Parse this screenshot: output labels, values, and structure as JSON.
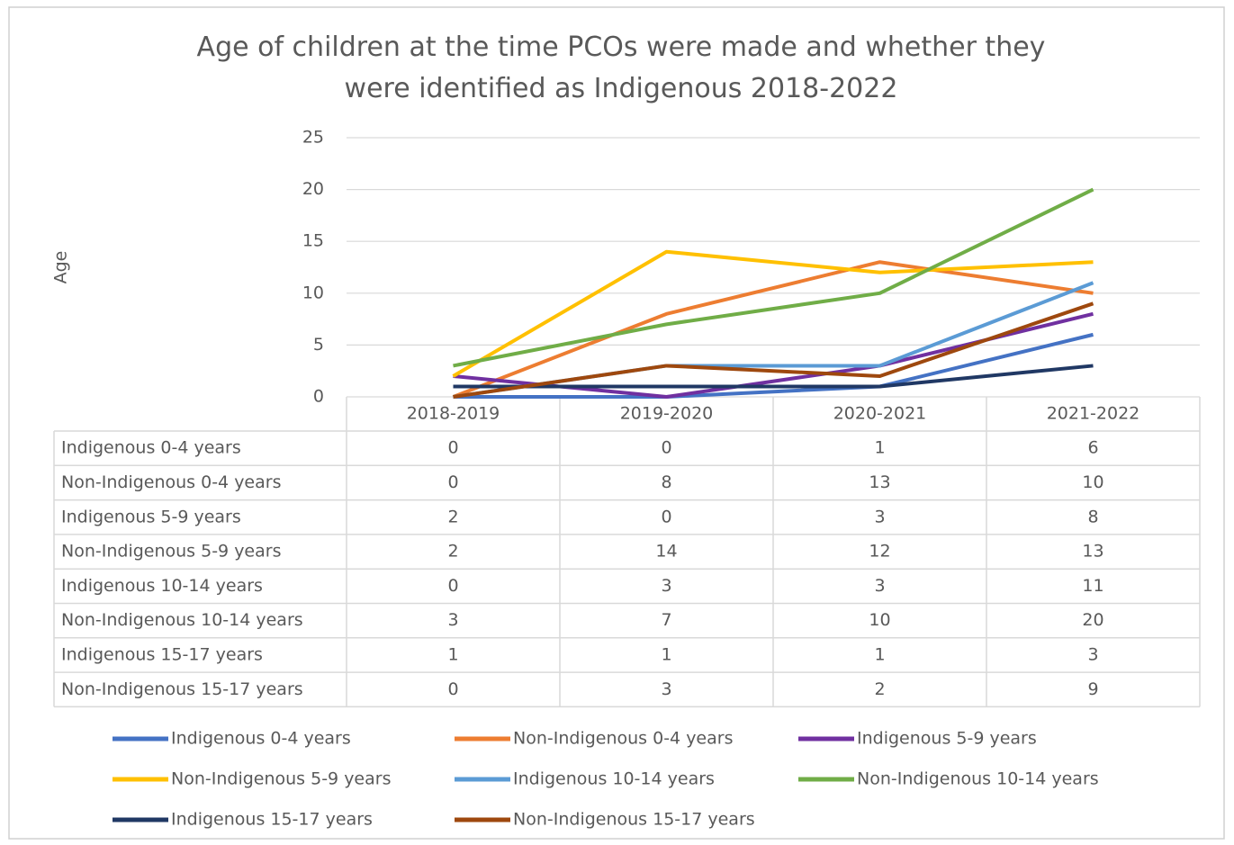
{
  "chart_data": {
    "type": "line",
    "title": "Age of children at the time PCOs were made and whether they were identified as Indigenous 2018-2022",
    "y_label": "Age",
    "categories": [
      "2018-2019",
      "2019-2020",
      "2020-2021",
      "2021-2022"
    ],
    "series": [
      {
        "name": "Indigenous 0-4 years",
        "color": "#4472c4",
        "values": [
          0,
          0,
          1,
          6
        ]
      },
      {
        "name": "Non-Indigenous 0-4 years",
        "color": "#ed7d31",
        "values": [
          0,
          8,
          13,
          10
        ]
      },
      {
        "name": "Indigenous 5-9 years",
        "color": "#7030a0",
        "values": [
          2,
          0,
          3,
          8
        ]
      },
      {
        "name": "Non-Indigenous 5-9 years",
        "color": "#ffc000",
        "values": [
          2,
          14,
          12,
          13
        ]
      },
      {
        "name": "Indigenous 10-14 years",
        "color": "#5b9bd5",
        "values": [
          0,
          3,
          3,
          11
        ]
      },
      {
        "name": "Non-Indigenous 10-14 years",
        "color": "#70ad47",
        "values": [
          3,
          7,
          10,
          20
        ]
      },
      {
        "name": "Indigenous 15-17 years",
        "color": "#203864",
        "values": [
          1,
          1,
          1,
          3
        ]
      },
      {
        "name": "Non-Indigenous 15-17 years",
        "color": "#9e480e",
        "values": [
          0,
          3,
          2,
          9
        ]
      }
    ],
    "ylim": [
      0,
      25
    ],
    "yticks": [
      0,
      5,
      10,
      15,
      20,
      25
    ],
    "grid": true,
    "legend": "bottom"
  }
}
